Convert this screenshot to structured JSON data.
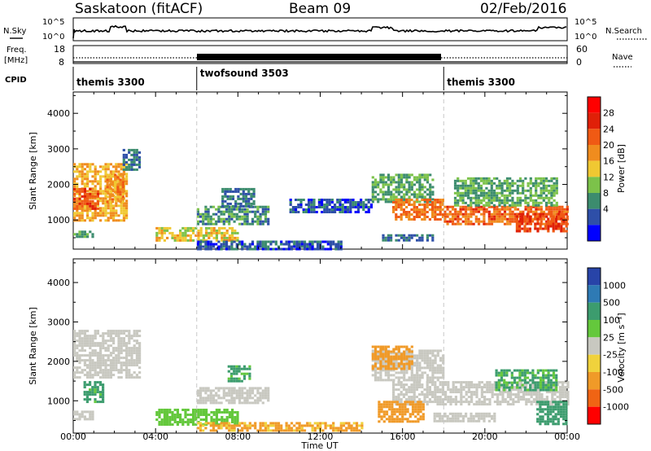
{
  "header": {
    "station": "Saskatoon (fitACF)",
    "beam": "Beam 09",
    "date": "02/Feb/2016"
  },
  "status_panels": {
    "nsky": {
      "label": "N.Sky",
      "ticks": [
        "10^5",
        "10^0"
      ]
    },
    "nsearch": {
      "label": "N.Search",
      "ticks": [
        "10^5",
        "10^0"
      ]
    },
    "freq": {
      "label_line1": "Freq.",
      "label_line2": "[MHz]",
      "ticks": [
        "18",
        "8"
      ]
    },
    "nave": {
      "label": "Nave",
      "ticks": [
        "60",
        "0"
      ]
    },
    "cpid": {
      "label": "CPID"
    }
  },
  "cpid_segments": [
    {
      "name": "themis 3300",
      "start_hour": 0,
      "end_hour": 6
    },
    {
      "name": "twofsound 3503",
      "start_hour": 6,
      "end_hour": 18
    },
    {
      "name": "themis 3300",
      "start_hour": 18,
      "end_hour": 24
    }
  ],
  "axes": {
    "x_label": "Time UT",
    "x_ticks": [
      "00:00",
      "04:00",
      "08:00",
      "12:00",
      "16:00",
      "20:00",
      "00:00"
    ],
    "x_range_hours": [
      0,
      24
    ],
    "y_label": "Slant Range [km]",
    "y_ticks": [
      1000,
      2000,
      3000,
      4000
    ],
    "y_range_km": [
      180,
      4600
    ]
  },
  "colorbars": {
    "power": {
      "label": "Power [dB]",
      "tick_labels": [
        "28",
        "24",
        "20",
        "16",
        "12",
        "8",
        "4"
      ],
      "colors": [
        "#0000ff",
        "#2e4fa8",
        "#3c8c6e",
        "#7cc24a",
        "#f0c832",
        "#f08c1e",
        "#f05a14",
        "#e02008",
        "#ff0000"
      ]
    },
    "velocity": {
      "label": "Velocity [m s⁻¹]",
      "tick_labels": [
        "1000",
        "500",
        "100",
        "25",
        "-25",
        "-100",
        "-500",
        "-1000"
      ],
      "colors": [
        "#2844a8",
        "#2e7ab4",
        "#3c9c6e",
        "#64c83c",
        "#c8c8c0",
        "#f0d23c",
        "#f09a28",
        "#f06414",
        "#ff0000"
      ]
    }
  },
  "chart_data": [
    {
      "type": "heatmap",
      "title": "",
      "quantity": "Power [dB]",
      "xlabel": "",
      "ylabel": "Slant Range [km]",
      "xlim_hours": [
        0,
        24
      ],
      "ylim_km": [
        180,
        4600
      ],
      "regions": [
        {
          "t0": 0.0,
          "t1": 2.6,
          "r0": 1000,
          "r1": 2600,
          "value": 20
        },
        {
          "t0": 0.0,
          "t1": 1.2,
          "r0": 1300,
          "r1": 1900,
          "value": 26
        },
        {
          "t0": 1.6,
          "t1": 2.4,
          "r0": 1500,
          "r1": 2300,
          "value": 22
        },
        {
          "t0": 2.4,
          "t1": 3.2,
          "r0": 2400,
          "r1": 3000,
          "value": 8
        },
        {
          "t0": 0.0,
          "t1": 1.0,
          "r0": 500,
          "r1": 700,
          "value": 12
        },
        {
          "t0": 4.0,
          "t1": 8.0,
          "r0": 400,
          "r1": 800,
          "value": 18
        },
        {
          "t0": 6.0,
          "t1": 9.5,
          "r0": 900,
          "r1": 1400,
          "value": 10
        },
        {
          "t0": 7.2,
          "t1": 8.8,
          "r0": 1400,
          "r1": 1900,
          "value": 8
        },
        {
          "t0": 6.0,
          "t1": 13.0,
          "r0": 200,
          "r1": 420,
          "value": 6
        },
        {
          "t0": 10.5,
          "t1": 14.5,
          "r0": 1200,
          "r1": 1600,
          "value": 6
        },
        {
          "t0": 14.5,
          "t1": 17.5,
          "r0": 1500,
          "r1": 2300,
          "value": 12
        },
        {
          "t0": 15.5,
          "t1": 18.0,
          "r0": 1000,
          "r1": 1600,
          "value": 24
        },
        {
          "t0": 18.0,
          "t1": 24.0,
          "r0": 900,
          "r1": 1400,
          "value": 25
        },
        {
          "t0": 21.5,
          "t1": 24.0,
          "r0": 700,
          "r1": 1200,
          "value": 28
        },
        {
          "t0": 18.5,
          "t1": 23.5,
          "r0": 1400,
          "r1": 2200,
          "value": 12
        },
        {
          "t0": 15.0,
          "t1": 17.5,
          "r0": 400,
          "r1": 600,
          "value": 8
        }
      ]
    },
    {
      "type": "heatmap",
      "title": "",
      "quantity": "Velocity [m s⁻¹]",
      "xlabel": "Time UT",
      "ylabel": "Slant Range [km]",
      "xlim_hours": [
        0,
        24
      ],
      "ylim_km": [
        180,
        4600
      ],
      "regions": [
        {
          "t0": 0.0,
          "t1": 3.2,
          "r0": 1600,
          "r1": 2800,
          "value": 0
        },
        {
          "t0": 0.5,
          "t1": 1.4,
          "r0": 1000,
          "r1": 1500,
          "value": 150
        },
        {
          "t0": 0.0,
          "t1": 1.0,
          "r0": 550,
          "r1": 750,
          "value": 0
        },
        {
          "t0": 4.0,
          "t1": 8.0,
          "r0": 400,
          "r1": 800,
          "value": 60
        },
        {
          "t0": 6.0,
          "t1": 9.5,
          "r0": 950,
          "r1": 1350,
          "value": 0
        },
        {
          "t0": 7.5,
          "t1": 8.6,
          "r0": 1500,
          "r1": 1900,
          "value": 120
        },
        {
          "t0": 6.0,
          "t1": 14.0,
          "r0": 220,
          "r1": 460,
          "value": -120
        },
        {
          "t0": 14.5,
          "t1": 18.0,
          "r0": 1500,
          "r1": 2300,
          "value": 0
        },
        {
          "t0": 14.5,
          "t1": 16.5,
          "r0": 1800,
          "r1": 2400,
          "value": -300
        },
        {
          "t0": 15.5,
          "t1": 24.0,
          "r0": 900,
          "r1": 1500,
          "value": 0
        },
        {
          "t0": 14.8,
          "t1": 17.0,
          "r0": 500,
          "r1": 1000,
          "value": -200
        },
        {
          "t0": 22.5,
          "t1": 24.0,
          "r0": 400,
          "r1": 1000,
          "value": 300
        },
        {
          "t0": 20.5,
          "t1": 23.5,
          "r0": 1300,
          "r1": 1800,
          "value": 120
        },
        {
          "t0": 17.5,
          "t1": 20.5,
          "r0": 500,
          "r1": 700,
          "value": 0
        }
      ]
    }
  ]
}
